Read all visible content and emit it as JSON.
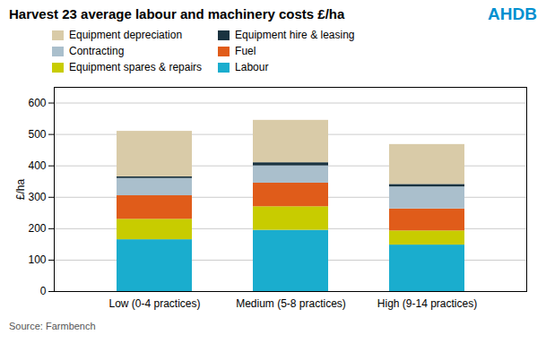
{
  "chart_data": {
    "type": "bar",
    "stacked": true,
    "title": "Harvest 23 average labour and machinery costs £/ha",
    "ylabel": "£/ha",
    "categories": [
      "Low (0-4 practices)",
      "Medium (5-8 practices)",
      "High (9-14 practices)"
    ],
    "series": [
      {
        "name": "Labour",
        "color": "#1AADCE",
        "values": [
          165,
          195,
          148
        ]
      },
      {
        "name": "Equipment spares & repairs",
        "color": "#C8CC00",
        "values": [
          65,
          75,
          45
        ]
      },
      {
        "name": "Fuel",
        "color": "#E05C1A",
        "values": [
          75,
          75,
          70
        ]
      },
      {
        "name": "Contracting",
        "color": "#AABFCC",
        "values": [
          55,
          55,
          70
        ]
      },
      {
        "name": "Equipment hire & leasing",
        "color": "#1A3340",
        "values": [
          5,
          10,
          8
        ]
      },
      {
        "name": "Equipment depreciation",
        "color": "#D9CBA8",
        "values": [
          145,
          135,
          127
        ]
      }
    ],
    "ylim": [
      0,
      650
    ],
    "yticks": [
      0,
      100,
      200,
      300,
      400,
      500,
      600
    ],
    "grid": true,
    "legend": "upper left",
    "annotations": [
      {
        "text": "AHDB",
        "color": "#0090D0"
      },
      {
        "text": "Source: Farmbench"
      }
    ]
  }
}
